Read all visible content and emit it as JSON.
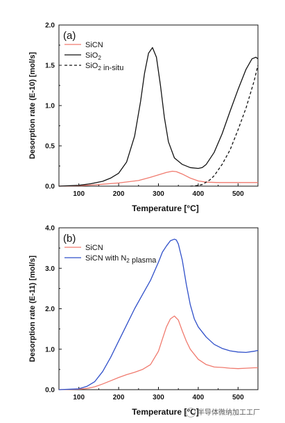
{
  "chart_data": [
    {
      "type": "line",
      "panel_label": "(a)",
      "xlabel": "Temperature [°C]",
      "ylabel": "Desorption rate (E-10) [mol/s]",
      "xlim": [
        50,
        550
      ],
      "ylim": [
        0.0,
        2.0
      ],
      "xticks": [
        100,
        200,
        300,
        400,
        500
      ],
      "yticks": [
        "0.0",
        "0.5",
        "1.0",
        "1.5",
        "2.0"
      ],
      "legend_position": "top-left",
      "series": [
        {
          "name": "SiCN",
          "color": "#f07a6e",
          "dash": "solid",
          "x": [
            50,
            100,
            150,
            200,
            250,
            280,
            300,
            320,
            335,
            345,
            360,
            380,
            400,
            420,
            450,
            500,
            550
          ],
          "y": [
            0.0,
            0.005,
            0.02,
            0.04,
            0.07,
            0.11,
            0.14,
            0.17,
            0.185,
            0.18,
            0.15,
            0.1,
            0.065,
            0.05,
            0.045,
            0.045,
            0.045
          ]
        },
        {
          "name": "SiO2",
          "color": "#111111",
          "dash": "solid",
          "x": [
            50,
            100,
            130,
            160,
            180,
            200,
            220,
            240,
            255,
            265,
            275,
            285,
            295,
            305,
            315,
            325,
            340,
            360,
            380,
            400,
            410,
            420,
            440,
            460,
            480,
            500,
            520,
            535,
            545,
            550
          ],
          "y": [
            0.0,
            0.01,
            0.03,
            0.06,
            0.1,
            0.16,
            0.3,
            0.62,
            1.05,
            1.4,
            1.65,
            1.72,
            1.6,
            1.25,
            0.85,
            0.55,
            0.35,
            0.27,
            0.23,
            0.22,
            0.23,
            0.27,
            0.42,
            0.65,
            0.93,
            1.2,
            1.45,
            1.58,
            1.6,
            1.58
          ]
        },
        {
          "name": "SiO2 in-situ",
          "color": "#111111",
          "dash": "dashed",
          "x": [
            380,
            390,
            400,
            410,
            420,
            430,
            440,
            460,
            480,
            500,
            520,
            540,
            550
          ],
          "y": [
            0.0,
            0.003,
            0.01,
            0.02,
            0.05,
            0.08,
            0.13,
            0.27,
            0.45,
            0.7,
            0.97,
            1.3,
            1.5
          ]
        }
      ]
    },
    {
      "type": "line",
      "panel_label": "(b)",
      "xlabel": "Temperature [°C]",
      "ylabel": "Desorption rate (E-11) [mol/s]",
      "xlim": [
        50,
        550
      ],
      "ylim": [
        0.0,
        4.0
      ],
      "xticks": [
        100,
        200,
        300,
        400,
        500
      ],
      "yticks": [
        "0.0",
        "1.0",
        "2.0",
        "3.0",
        "4.0"
      ],
      "legend_position": "top-left",
      "series": [
        {
          "name": "SiCN",
          "color": "#f07a6e",
          "dash": "solid",
          "x": [
            50,
            100,
            120,
            140,
            160,
            180,
            200,
            220,
            240,
            260,
            280,
            300,
            310,
            320,
            330,
            340,
            350,
            360,
            370,
            380,
            400,
            420,
            440,
            460,
            480,
            500,
            520,
            540,
            550
          ],
          "y": [
            0.0,
            0.01,
            0.03,
            0.07,
            0.14,
            0.22,
            0.3,
            0.37,
            0.43,
            0.5,
            0.62,
            0.95,
            1.25,
            1.55,
            1.75,
            1.82,
            1.72,
            1.45,
            1.2,
            1.0,
            0.75,
            0.62,
            0.56,
            0.55,
            0.53,
            0.52,
            0.53,
            0.54,
            0.54
          ]
        },
        {
          "name": "SiCN with N2 plasma",
          "color": "#2f4fc9",
          "dash": "solid",
          "x": [
            50,
            100,
            120,
            140,
            160,
            180,
            200,
            220,
            240,
            260,
            280,
            300,
            310,
            320,
            330,
            340,
            345,
            350,
            360,
            370,
            380,
            390,
            400,
            420,
            440,
            460,
            480,
            500,
            520,
            540,
            550
          ],
          "y": [
            0.0,
            0.02,
            0.08,
            0.2,
            0.45,
            0.8,
            1.2,
            1.6,
            2.0,
            2.35,
            2.7,
            3.15,
            3.4,
            3.55,
            3.68,
            3.72,
            3.7,
            3.6,
            3.2,
            2.6,
            2.1,
            1.75,
            1.55,
            1.3,
            1.12,
            1.02,
            0.96,
            0.93,
            0.92,
            0.95,
            0.97
          ]
        }
      ]
    }
  ],
  "watermark": {
    "text": "半导体微纳加工工厂"
  }
}
